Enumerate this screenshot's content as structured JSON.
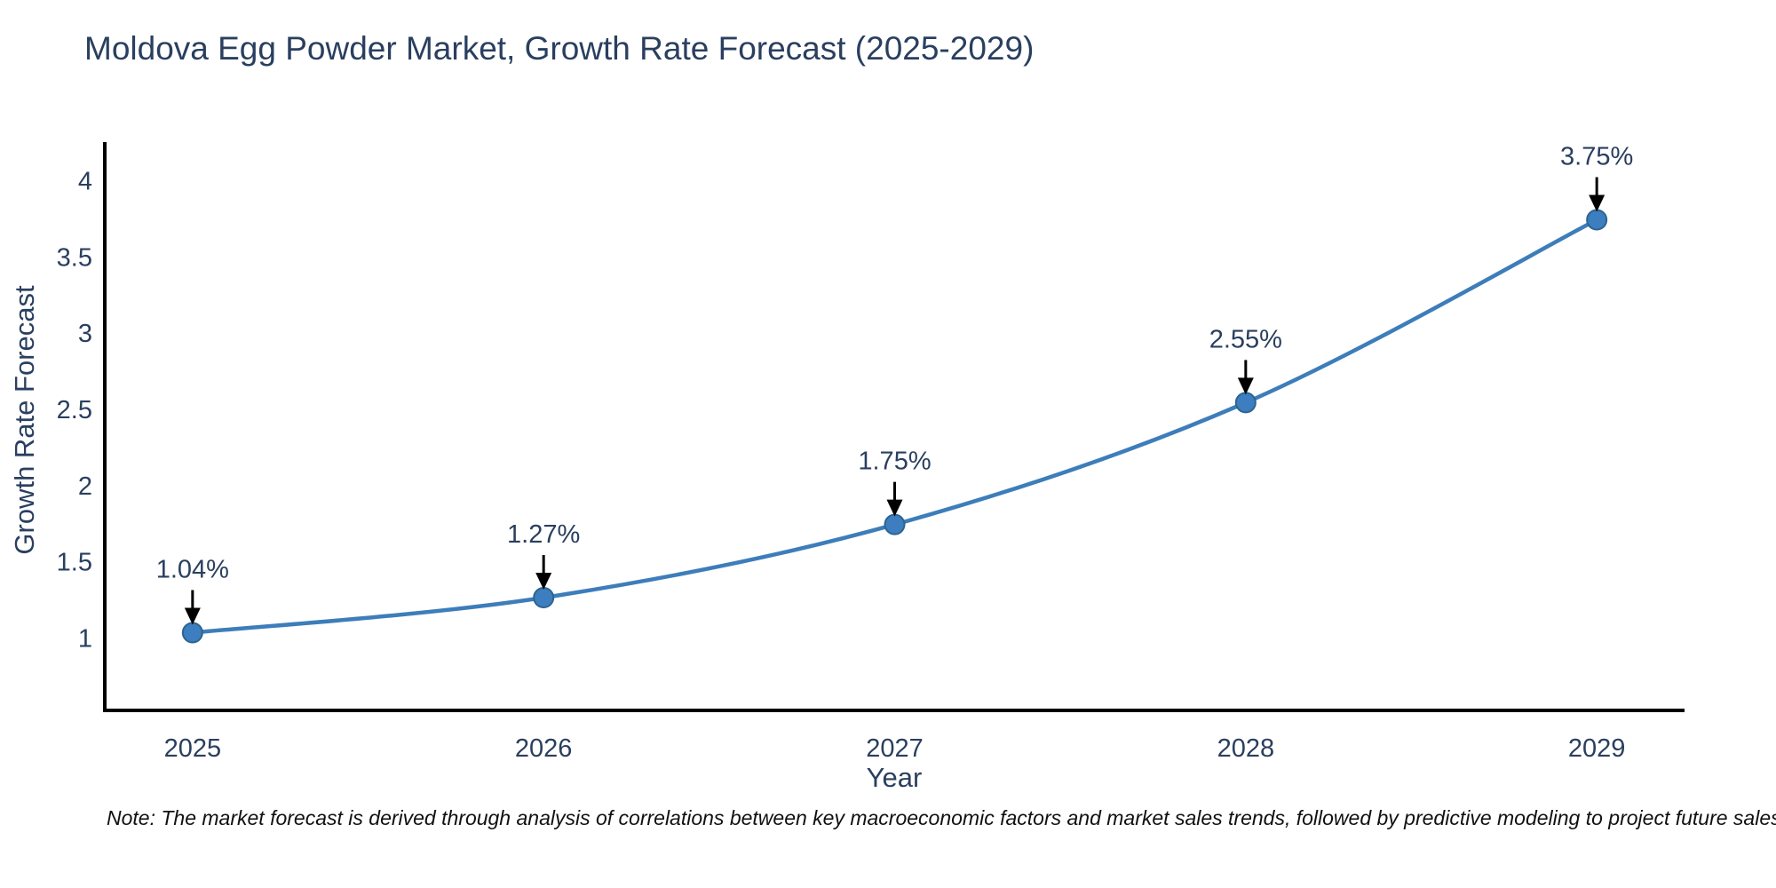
{
  "title": "Moldova Egg Powder Market, Growth Rate Forecast (2025-2029)",
  "footnote": "Note: The market forecast is derived through analysis of correlations between key macroeconomic factors and market sales trends, followed by predictive modeling to project future sales",
  "chart_data": {
    "type": "line",
    "title": "Moldova Egg Powder Market, Growth Rate Forecast (2025-2029)",
    "xlabel": "Year",
    "ylabel": "Growth Rate Forecast",
    "x": [
      2025,
      2026,
      2027,
      2028,
      2029
    ],
    "values": [
      1.04,
      1.27,
      1.75,
      2.55,
      3.75
    ],
    "annotations": [
      "1.04%",
      "1.27%",
      "1.75%",
      "2.55%",
      "3.75%"
    ],
    "xticks": [
      2025,
      2026,
      2027,
      2028,
      2029
    ],
    "xtick_labels": [
      "2025",
      "2026",
      "2027",
      "2028",
      "2029"
    ],
    "yticks": [
      1,
      1.5,
      2,
      2.5,
      3,
      3.5,
      4
    ],
    "ytick_labels": [
      "1",
      "1.5",
      "2",
      "2.5",
      "3",
      "3.5",
      "4"
    ],
    "xlim": [
      2024.75,
      2029.25
    ],
    "ylim": [
      0.53,
      4.26
    ],
    "grid": false,
    "legend": false,
    "smooth_line": true,
    "colors": {
      "line": "#3d7dba",
      "marker_fill": "#3c7ebf",
      "marker_edge": "#2e648f",
      "axis": "#000000",
      "tick_text": "#2a3f5f",
      "annotation_text": "#2a3f5f",
      "annotation_arrow": "#000000",
      "title_text": "#2a3f5f",
      "background": "#ffffff"
    }
  }
}
